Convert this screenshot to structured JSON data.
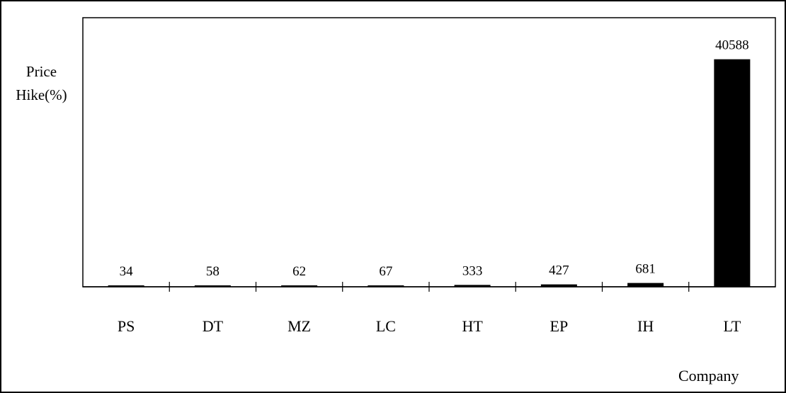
{
  "chart_data": {
    "type": "bar",
    "categories": [
      "PS",
      "DT",
      "MZ",
      "LC",
      "HT",
      "EP",
      "IH",
      "LT"
    ],
    "values": [
      34,
      58,
      62,
      67,
      333,
      427,
      681,
      40588
    ],
    "ylabel": [
      "Price",
      "Hike(%)"
    ],
    "xlabel": "Company",
    "ylim": [
      0,
      48000
    ],
    "grid": false,
    "bar_color": "#000000"
  }
}
